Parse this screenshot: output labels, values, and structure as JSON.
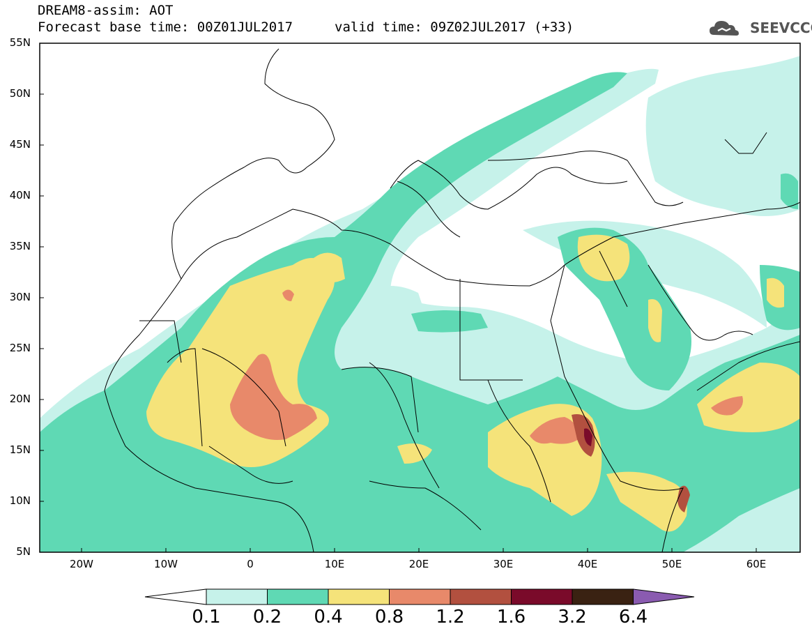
{
  "header": {
    "title": "DREAM8-assim: AOT",
    "base_time": "Forecast base time: 00Z01JUL2017",
    "valid_time": "valid time: 09Z02JUL2017 (+33)",
    "logo_text": "SEEVCCC"
  },
  "map": {
    "lat_labels": [
      "55N",
      "50N",
      "45N",
      "40N",
      "35N",
      "30N",
      "25N",
      "20N",
      "15N",
      "10N",
      "5N"
    ],
    "lon_labels": [
      "20W",
      "10W",
      "0",
      "10E",
      "20E",
      "30E",
      "40E",
      "50E",
      "60E"
    ],
    "colors": {
      "land_bg": "#ffffff",
      "c1": "#c6f2ea",
      "c2": "#5fd9b4",
      "c3": "#f5e37a",
      "c4": "#e8896a",
      "c5": "#b2503f",
      "c6": "#7a0a2a",
      "c7": "#3a2212",
      "c8": "#8a5bb0"
    }
  },
  "colorbar": {
    "labels": [
      "0.1",
      "0.2",
      "0.4",
      "0.8",
      "1.2",
      "1.6",
      "3.2",
      "6.4"
    ],
    "colors": [
      "#c6f2ea",
      "#5fd9b4",
      "#f5e37a",
      "#e8896a",
      "#b2503f",
      "#7a0a2a",
      "#3a2212"
    ]
  }
}
